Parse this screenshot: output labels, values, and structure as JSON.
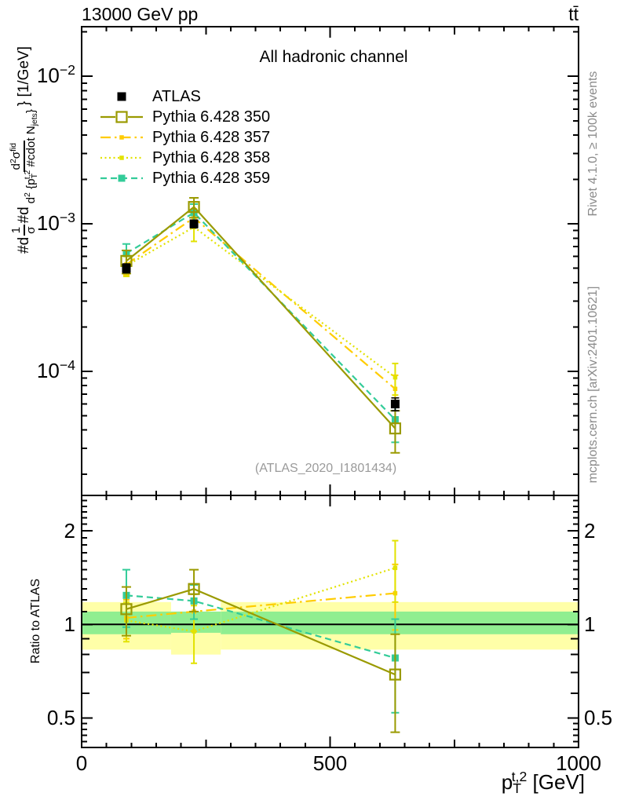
{
  "header": {
    "left": "13000 GeV pp",
    "right": "tt̄"
  },
  "side_texts": {
    "rivet": "Rivet 4.1.0, ≥ 100k events",
    "mcplots": "mcplots.cern.ch [arXiv:2401.10621]"
  },
  "chart_data": {
    "type": "line",
    "panel_title": "All hadronic channel",
    "watermark": "(ATLAS_2020_I1801434)",
    "xlabel": "p_{T}^{t,2} [GeV]",
    "ylabel": {
      "lead": "#d",
      "frac1_num": "1",
      "frac1_den": "σ",
      "mid": "#d",
      "frac2_num": "d^{2}σ^{fid}",
      "frac2_den": "d^{2} {p_{T}^{t,2} #cdot N_{jets}}",
      "tail": "} [1/GeV]"
    },
    "ratio_ylabel": "Ratio to ATLAS",
    "x_axis": {
      "lim": [
        0,
        1000
      ],
      "major_ticks": [
        0,
        500,
        1000
      ],
      "tick_labels": [
        "0",
        "500",
        "1000"
      ],
      "medium_ticks": [
        250,
        750
      ],
      "minor_step": 50
    },
    "top_axis": {
      "scale": "log",
      "lim": [
        1.44e-05,
        0.0217
      ],
      "tick_labels": [
        {
          "v": 0.01,
          "text": "10^{−2}"
        },
        {
          "v": 0.001,
          "text": "10^{−3}"
        },
        {
          "v": 0.0001,
          "text": "10^{−4}"
        }
      ]
    },
    "ratio_axis": {
      "scale": "log",
      "lim": [
        0.402,
        2.6
      ],
      "tick_labels": [
        {
          "v": 2,
          "text": "2"
        },
        {
          "v": 1,
          "text": "1"
        },
        {
          "v": 0.5,
          "text": "0.5"
        }
      ],
      "medium_ticks": [
        0.6,
        0.7,
        0.8,
        0.9
      ],
      "minor_ticks": [
        0.42,
        0.44,
        0.46,
        0.48,
        1.1,
        1.2,
        1.3,
        1.4,
        1.5,
        1.6,
        1.7,
        1.8,
        1.9,
        2.1,
        2.2,
        2.3,
        2.4,
        2.5
      ]
    },
    "x_values": [
      90,
      226,
      631
    ],
    "reference": {
      "label": "ATLAS",
      "color": "#000000",
      "line": "none",
      "marker": "atlas-square",
      "y": [
        0.0005,
        0.001,
        6e-05
      ],
      "yerr": [
        3.5e-05,
        6e-05,
        6e-06
      ]
    },
    "series": [
      {
        "label": "Pythia 6.428 350",
        "color": "#9a9a00",
        "line": "solid",
        "marker": "open-square",
        "y": [
          0.00056,
          0.0013,
          4.1e-05
        ],
        "yerr": [
          0.0001,
          0.0002,
          1.3e-05
        ],
        "ratio": [
          1.12,
          1.3,
          0.69
        ],
        "ratio_err": [
          0.2,
          0.2,
          0.24
        ]
      },
      {
        "label": "Pythia 6.428 357",
        "color": "#ffcc00",
        "line": "dashdot",
        "marker": "small-square",
        "y": [
          0.00053,
          0.0011,
          7.6e-05
        ],
        "yerr": [
          8e-05,
          0.00016,
          1.8e-05
        ],
        "ratio": [
          1.05,
          1.1,
          1.26
        ],
        "ratio_err": [
          0.15,
          0.15,
          0.3
        ]
      },
      {
        "label": "Pythia 6.428 358",
        "color": "#e2e200",
        "line": "dotted",
        "marker": "small-square",
        "y": [
          0.00052,
          0.00095,
          9.1e-05
        ],
        "yerr": [
          8e-05,
          0.00019,
          2.2e-05
        ],
        "ratio": [
          1.03,
          0.95,
          1.52
        ],
        "ratio_err": [
          0.15,
          0.2,
          0.34
        ]
      },
      {
        "label": "Pythia 6.428 359",
        "color": "#33cc99",
        "line": "dashed",
        "marker": "filled-square",
        "y": [
          0.00063,
          0.00119,
          4.7e-05
        ],
        "yerr": [
          0.0001,
          0.00017,
          1.4e-05
        ],
        "ratio": [
          1.24,
          1.19,
          0.78
        ],
        "ratio_err": [
          0.26,
          0.15,
          0.26
        ]
      }
    ],
    "uncertainty_bands": {
      "outer_color": "#ffffa8",
      "inner_color": "#90ee90",
      "bins": [
        {
          "x": [
            0,
            180
          ],
          "outer": [
            0.83,
            1.18
          ],
          "inner": [
            0.93,
            1.1
          ]
        },
        {
          "x": [
            180,
            280
          ],
          "outer": [
            0.8,
            1.1
          ],
          "inner": [
            0.94,
            1.1
          ]
        },
        {
          "x": [
            280,
            1000
          ],
          "outer": [
            0.83,
            1.18
          ],
          "inner": [
            0.93,
            1.1
          ]
        }
      ]
    }
  }
}
